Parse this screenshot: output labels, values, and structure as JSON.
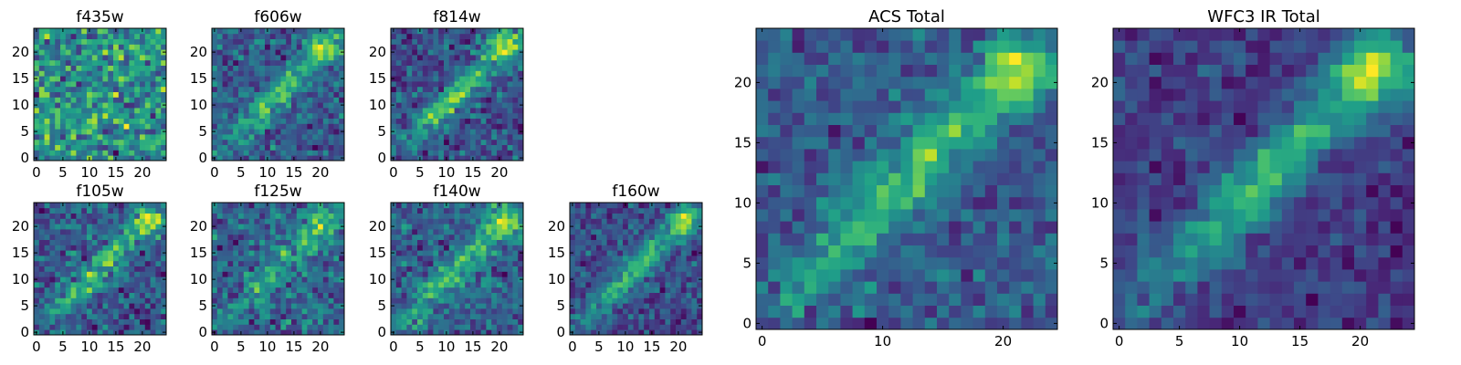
{
  "chart_data": [
    {
      "type": "heatmap",
      "title": "f435w",
      "xlim": [
        0,
        25
      ],
      "ylim": [
        0,
        25
      ],
      "xticks": [
        0,
        5,
        10,
        15,
        20
      ],
      "yticks": [
        0,
        5,
        10,
        15,
        20
      ],
      "colormap": "viridis",
      "feature_strength": 0.05,
      "noise": 0.75,
      "seed": 11
    },
    {
      "type": "heatmap",
      "title": "f606w",
      "xlim": [
        0,
        25
      ],
      "ylim": [
        0,
        25
      ],
      "xticks": [
        0,
        5,
        10,
        15,
        20
      ],
      "yticks": [
        0,
        5,
        10,
        15,
        20
      ],
      "colormap": "viridis",
      "feature_strength": 0.55,
      "noise": 0.45,
      "seed": 23
    },
    {
      "type": "heatmap",
      "title": "f814w",
      "xlim": [
        0,
        25
      ],
      "ylim": [
        0,
        25
      ],
      "xticks": [
        0,
        5,
        10,
        15,
        20
      ],
      "yticks": [
        0,
        5,
        10,
        15,
        20
      ],
      "colormap": "viridis",
      "feature_strength": 0.6,
      "noise": 0.42,
      "seed": 37
    },
    {
      "type": "heatmap",
      "title": "f105w",
      "xlim": [
        0,
        25
      ],
      "ylim": [
        0,
        25
      ],
      "xticks": [
        0,
        5,
        10,
        15,
        20
      ],
      "yticks": [
        0,
        5,
        10,
        15,
        20
      ],
      "colormap": "viridis",
      "feature_strength": 0.55,
      "noise": 0.45,
      "seed": 41
    },
    {
      "type": "heatmap",
      "title": "f125w",
      "xlim": [
        0,
        25
      ],
      "ylim": [
        0,
        25
      ],
      "xticks": [
        0,
        5,
        10,
        15,
        20
      ],
      "yticks": [
        0,
        5,
        10,
        15,
        20
      ],
      "colormap": "viridis",
      "feature_strength": 0.4,
      "noise": 0.5,
      "seed": 53
    },
    {
      "type": "heatmap",
      "title": "f140w",
      "xlim": [
        0,
        25
      ],
      "ylim": [
        0,
        25
      ],
      "xticks": [
        0,
        5,
        10,
        15,
        20
      ],
      "yticks": [
        0,
        5,
        10,
        15,
        20
      ],
      "colormap": "viridis",
      "feature_strength": 0.55,
      "noise": 0.45,
      "seed": 67
    },
    {
      "type": "heatmap",
      "title": "f160w",
      "xlim": [
        0,
        25
      ],
      "ylim": [
        0,
        25
      ],
      "xticks": [
        0,
        5,
        10,
        15,
        20
      ],
      "yticks": [
        0,
        5,
        10,
        15,
        20
      ],
      "colormap": "viridis",
      "feature_strength": 0.65,
      "noise": 0.4,
      "seed": 79
    },
    {
      "type": "heatmap",
      "title": "ACS Total",
      "xlim": [
        0,
        25
      ],
      "ylim": [
        0,
        25
      ],
      "xticks": [
        0,
        10,
        20
      ],
      "yticks": [
        0,
        5,
        10,
        15,
        20
      ],
      "colormap": "viridis",
      "feature_strength": 0.65,
      "noise": 0.38,
      "seed": 97
    },
    {
      "type": "heatmap",
      "title": "WFC3 IR Total",
      "xlim": [
        0,
        25
      ],
      "ylim": [
        0,
        25
      ],
      "xticks": [
        0,
        5,
        10,
        15,
        20
      ],
      "yticks": [
        0,
        5,
        10,
        15,
        20
      ],
      "colormap": "viridis",
      "feature_strength": 0.75,
      "noise": 0.3,
      "seed": 131
    }
  ]
}
